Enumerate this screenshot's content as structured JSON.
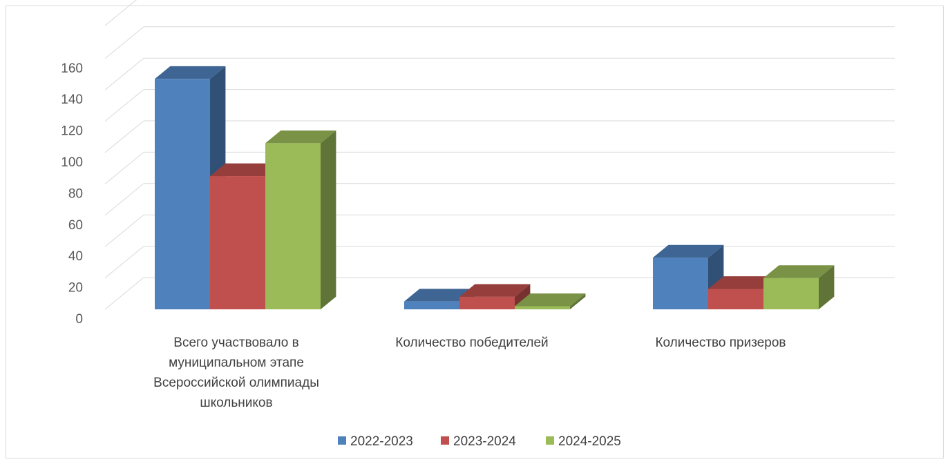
{
  "chart_data": {
    "type": "bar",
    "style": "3d-clustered-column",
    "categories": [
      [
        "Всего участвовало в",
        "муниципальном этапе",
        "Всероссийской олимпиады",
        "школьников"
      ],
      [
        "Количество победителей"
      ],
      [
        "Количество призеров"
      ]
    ],
    "series": [
      {
        "name": "2022-2023",
        "values": [
          147,
          5,
          33
        ],
        "color": "#4f81bd"
      },
      {
        "name": "2023-2024",
        "values": [
          85,
          8,
          13
        ],
        "color": "#c0504d"
      },
      {
        "name": "2024-2025",
        "values": [
          106,
          2,
          20
        ],
        "color": "#9bbb59"
      }
    ],
    "y_ticks": [
      "0",
      "20",
      "40",
      "60",
      "80",
      "100",
      "120",
      "140",
      "160"
    ],
    "ylim": [
      0,
      160
    ],
    "grid": true,
    "legend_position": "bottom"
  }
}
